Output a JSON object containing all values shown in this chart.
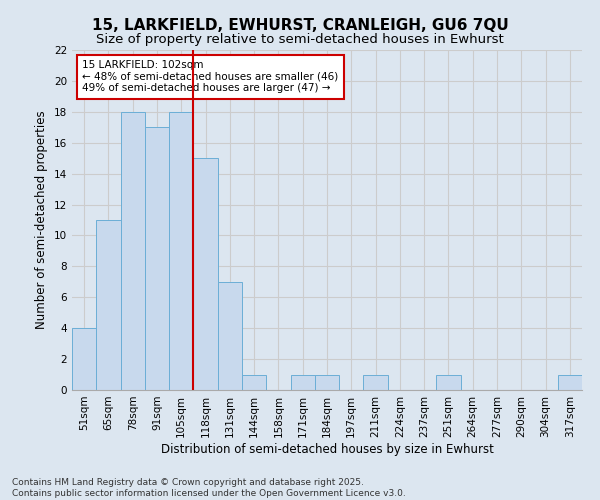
{
  "title1": "15, LARKFIELD, EWHURST, CRANLEIGH, GU6 7QU",
  "title2": "Size of property relative to semi-detached houses in Ewhurst",
  "xlabel": "Distribution of semi-detached houses by size in Ewhurst",
  "ylabel": "Number of semi-detached properties",
  "categories": [
    "51sqm",
    "65sqm",
    "78sqm",
    "91sqm",
    "105sqm",
    "118sqm",
    "131sqm",
    "144sqm",
    "158sqm",
    "171sqm",
    "184sqm",
    "197sqm",
    "211sqm",
    "224sqm",
    "237sqm",
    "251sqm",
    "264sqm",
    "277sqm",
    "290sqm",
    "304sqm",
    "317sqm"
  ],
  "values": [
    4,
    11,
    18,
    17,
    18,
    15,
    7,
    1,
    0,
    1,
    1,
    0,
    1,
    0,
    0,
    1,
    0,
    0,
    0,
    0,
    1
  ],
  "bar_color": "#c8d9ed",
  "bar_edge_color": "#6baed6",
  "vline_x_index": 4,
  "annotation_text": "15 LARKFIELD: 102sqm\n← 48% of semi-detached houses are smaller (46)\n49% of semi-detached houses are larger (47) →",
  "annotation_box_color": "#ffffff",
  "annotation_box_edge": "#cc0000",
  "vline_color": "#cc0000",
  "ylim": [
    0,
    22
  ],
  "yticks": [
    0,
    2,
    4,
    6,
    8,
    10,
    12,
    14,
    16,
    18,
    20,
    22
  ],
  "grid_color": "#cccccc",
  "bg_color": "#dce6f0",
  "footer": "Contains HM Land Registry data © Crown copyright and database right 2025.\nContains public sector information licensed under the Open Government Licence v3.0.",
  "title_fontsize": 11,
  "subtitle_fontsize": 9.5,
  "label_fontsize": 8.5,
  "tick_fontsize": 7.5,
  "footer_fontsize": 6.5
}
